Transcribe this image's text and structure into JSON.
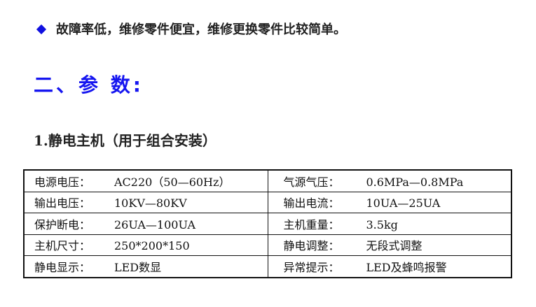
{
  "bullet": {
    "icon": "diamond-bullet",
    "color": "#1010e0",
    "text": "故障率低，维修零件便宜，维修更换零件比较简单。"
  },
  "heading": "二、参 数:",
  "subheading": "1.静电主机（用于组合安装）",
  "table": {
    "rows": [
      [
        {
          "label": "电源电压：",
          "value": "AC220（50—60Hz）"
        },
        {
          "label": "气源气压：",
          "value": "0.6MPa—0.8MPa"
        }
      ],
      [
        {
          "label": "输出电压：",
          "value": "10KV—80KV"
        },
        {
          "label": "输出电流：",
          "value": "10UA—25UA"
        }
      ],
      [
        {
          "label": "保护断电：",
          "value": "26UA—100UA"
        },
        {
          "label": "主机重量：",
          "value": "3.5kg"
        }
      ],
      [
        {
          "label": "主机尺寸：",
          "value": "250*200*150"
        },
        {
          "label": "静电调整：",
          "value": "无段式调整"
        }
      ],
      [
        {
          "label": "静电显示：",
          "value": "LED数显"
        },
        {
          "label": "异常提示：",
          "value": "LED及蜂鸣报警"
        }
      ]
    ]
  }
}
